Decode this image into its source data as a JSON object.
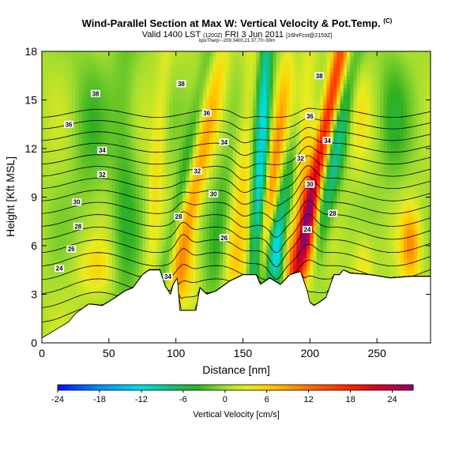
{
  "chart_data": {
    "type": "heatmap",
    "title": "Wind-Parallel Section at Max W: Vertical Velocity & Pot.Temp.",
    "title_mark": "(C)",
    "subtitle": "Valid 1400 LST",
    "subtitle_small1": "(1200Z)",
    "subtitle_date": "FRI 3 Jun 2011",
    "subtitle_small2": "[16hrFcst@2159Z]",
    "subtitle2": "bpxTherp~-209 3400,21 37,70~30m",
    "xlabel": "Distance [nm]",
    "ylabel": "Height [Kft MSL]",
    "xlim": [
      0,
      290
    ],
    "ylim": [
      0,
      18
    ],
    "x_ticks": [
      0,
      50,
      100,
      150,
      200,
      250
    ],
    "y_ticks": [
      0,
      3,
      6,
      9,
      12,
      15,
      18
    ],
    "colorbar": {
      "label": "Vertical Velocity [cm/s]",
      "min": -24,
      "max": 27,
      "ticks": [
        -24,
        -18,
        -12,
        -6,
        0,
        6,
        12,
        18,
        24
      ],
      "stops": [
        {
          "value": -24,
          "color": "#0010ff"
        },
        {
          "value": -18,
          "color": "#0090ff"
        },
        {
          "value": -12,
          "color": "#00e0e0"
        },
        {
          "value": -8,
          "color": "#10c080"
        },
        {
          "value": -4,
          "color": "#30b020"
        },
        {
          "value": 0,
          "color": "#a0dc30"
        },
        {
          "value": 3,
          "color": "#e8ec20"
        },
        {
          "value": 6,
          "color": "#ffd000"
        },
        {
          "value": 9,
          "color": "#ffa000"
        },
        {
          "value": 13,
          "color": "#ff6000"
        },
        {
          "value": 18,
          "color": "#ff2000"
        },
        {
          "value": 22,
          "color": "#d00020"
        },
        {
          "value": 27,
          "color": "#900070"
        }
      ]
    },
    "terrain": [
      [
        0,
        0.3
      ],
      [
        10,
        0.8
      ],
      [
        20,
        1.3
      ],
      [
        25,
        1.8
      ],
      [
        35,
        2.4
      ],
      [
        45,
        2.3
      ],
      [
        55,
        2.8
      ],
      [
        62,
        3.2
      ],
      [
        68,
        3.4
      ],
      [
        75,
        4.2
      ],
      [
        80,
        4.5
      ],
      [
        88,
        4.5
      ],
      [
        92,
        3.5
      ],
      [
        96,
        3.0
      ],
      [
        98,
        3.6
      ],
      [
        101,
        4.0
      ],
      [
        103,
        2.0
      ],
      [
        115,
        2.0
      ],
      [
        118,
        3.4
      ],
      [
        123,
        3.0
      ],
      [
        130,
        3.2
      ],
      [
        140,
        3.8
      ],
      [
        150,
        4.2
      ],
      [
        160,
        4.2
      ],
      [
        163,
        3.6
      ],
      [
        170,
        4.0
      ],
      [
        178,
        3.6
      ],
      [
        185,
        4.2
      ],
      [
        193,
        4.4
      ],
      [
        198,
        3.2
      ],
      [
        200,
        2.5
      ],
      [
        203,
        2.3
      ],
      [
        207,
        2.5
      ],
      [
        212,
        2.8
      ],
      [
        218,
        4.2
      ],
      [
        222,
        4.2
      ],
      [
        225,
        4.5
      ],
      [
        230,
        4.3
      ],
      [
        245,
        4.2
      ],
      [
        260,
        4.0
      ],
      [
        275,
        4.1
      ],
      [
        290,
        4.1
      ]
    ],
    "w_features": [
      {
        "x": 205,
        "y": 10.5,
        "amp": 20,
        "sx": 4,
        "sy": 9,
        "tilt": 0.8
      },
      {
        "x": 198,
        "y": 6.5,
        "amp": 12,
        "sx": 5,
        "sy": 2.5,
        "tilt": 0
      },
      {
        "x": 196,
        "y": 14,
        "amp": 10,
        "sx": 5,
        "sy": 4,
        "tilt": 0.5
      },
      {
        "x": 187,
        "y": 11,
        "amp": -9,
        "sx": 5,
        "sy": 6,
        "tilt": 0.8
      },
      {
        "x": 218,
        "y": 11,
        "amp": -9,
        "sx": 5,
        "sy": 6,
        "tilt": 0.8
      },
      {
        "x": 150,
        "y": 11,
        "amp": 5,
        "sx": 7,
        "sy": 6,
        "tilt": 0.4
      },
      {
        "x": 163,
        "y": 11,
        "amp": -14,
        "sx": 4,
        "sy": 9,
        "tilt": 0.2
      },
      {
        "x": 172,
        "y": 10,
        "amp": 10,
        "sx": 4,
        "sy": 5,
        "tilt": 0.5
      },
      {
        "x": 175,
        "y": 5.5,
        "amp": -8,
        "sx": 5,
        "sy": 1.5,
        "tilt": 0
      },
      {
        "x": 185,
        "y": 5.5,
        "amp": 8,
        "sx": 4,
        "sy": 1.5,
        "tilt": 0
      },
      {
        "x": 113,
        "y": 9,
        "amp": 8,
        "sx": 5,
        "sy": 7,
        "tilt": 0.8
      },
      {
        "x": 103,
        "y": 9,
        "amp": -5,
        "sx": 4,
        "sy": 7,
        "tilt": 0.8
      },
      {
        "x": 135,
        "y": 8,
        "amp": -4,
        "sx": 6,
        "sy": 6,
        "tilt": 0.5
      },
      {
        "x": 62,
        "y": 9,
        "amp": -4,
        "sx": 7,
        "sy": 8,
        "tilt": 0
      },
      {
        "x": 35,
        "y": 13,
        "amp": -3,
        "sx": 10,
        "sy": 4,
        "tilt": 0
      },
      {
        "x": 85,
        "y": 10,
        "amp": 4,
        "sx": 4,
        "sy": 6,
        "tilt": 0.3
      },
      {
        "x": 275,
        "y": 6,
        "amp": 9,
        "sx": 5,
        "sy": 1.5,
        "tilt": 0
      },
      {
        "x": 262,
        "y": 14,
        "amp": -4,
        "sx": 8,
        "sy": 3,
        "tilt": 0
      },
      {
        "x": 240,
        "y": 5,
        "amp": 4,
        "sx": 6,
        "sy": 1.5,
        "tilt": 0
      },
      {
        "x": 40,
        "y": 4.5,
        "amp": 4,
        "sx": 10,
        "sy": 1.2,
        "tilt": 0
      },
      {
        "x": 108,
        "y": 4,
        "amp": 4,
        "sx": 6,
        "sy": 1.5,
        "tilt": 0
      },
      {
        "x": 145,
        "y": 5,
        "amp": 3,
        "sx": 6,
        "sy": 1.5,
        "tilt": 0
      },
      {
        "x": 235,
        "y": 15,
        "amp": 3,
        "sx": 6,
        "sy": 3,
        "tilt": 0
      }
    ],
    "theta_levels": [
      22,
      23,
      24,
      25,
      26,
      27,
      28,
      29,
      30,
      31,
      32,
      33,
      34,
      35,
      36,
      37,
      38
    ],
    "theta_model": {
      "t0": 20,
      "rate": 1.1,
      "curv": 0.012
    },
    "theta_labels": [
      {
        "text": "24",
        "x": 13,
        "y": 4.6
      },
      {
        "text": "26",
        "x": 22,
        "y": 5.8
      },
      {
        "text": "28",
        "x": 27,
        "y": 7.2
      },
      {
        "text": "30",
        "x": 26,
        "y": 8.7
      },
      {
        "text": "32",
        "x": 45,
        "y": 10.4
      },
      {
        "text": "34",
        "x": 45,
        "y": 11.9
      },
      {
        "text": "36",
        "x": 20,
        "y": 13.5
      },
      {
        "text": "38",
        "x": 40,
        "y": 15.4
      },
      {
        "text": "34",
        "x": 94,
        "y": 4.1
      },
      {
        "text": "28",
        "x": 102,
        "y": 7.8
      },
      {
        "text": "30",
        "x": 128,
        "y": 9.2
      },
      {
        "text": "32",
        "x": 116,
        "y": 10.6
      },
      {
        "text": "34",
        "x": 136,
        "y": 12.4
      },
      {
        "text": "36",
        "x": 123,
        "y": 14.2
      },
      {
        "text": "38",
        "x": 104,
        "y": 16.0
      },
      {
        "text": "26",
        "x": 136,
        "y": 6.5
      },
      {
        "text": "24",
        "x": 198,
        "y": 7.0
      },
      {
        "text": "28",
        "x": 217,
        "y": 8.0
      },
      {
        "text": "30",
        "x": 200,
        "y": 9.8
      },
      {
        "text": "32",
        "x": 193,
        "y": 11.4
      },
      {
        "text": "34",
        "x": 213,
        "y": 12.5
      },
      {
        "text": "36",
        "x": 200,
        "y": 14.0
      },
      {
        "text": "38",
        "x": 207,
        "y": 16.5
      }
    ]
  }
}
